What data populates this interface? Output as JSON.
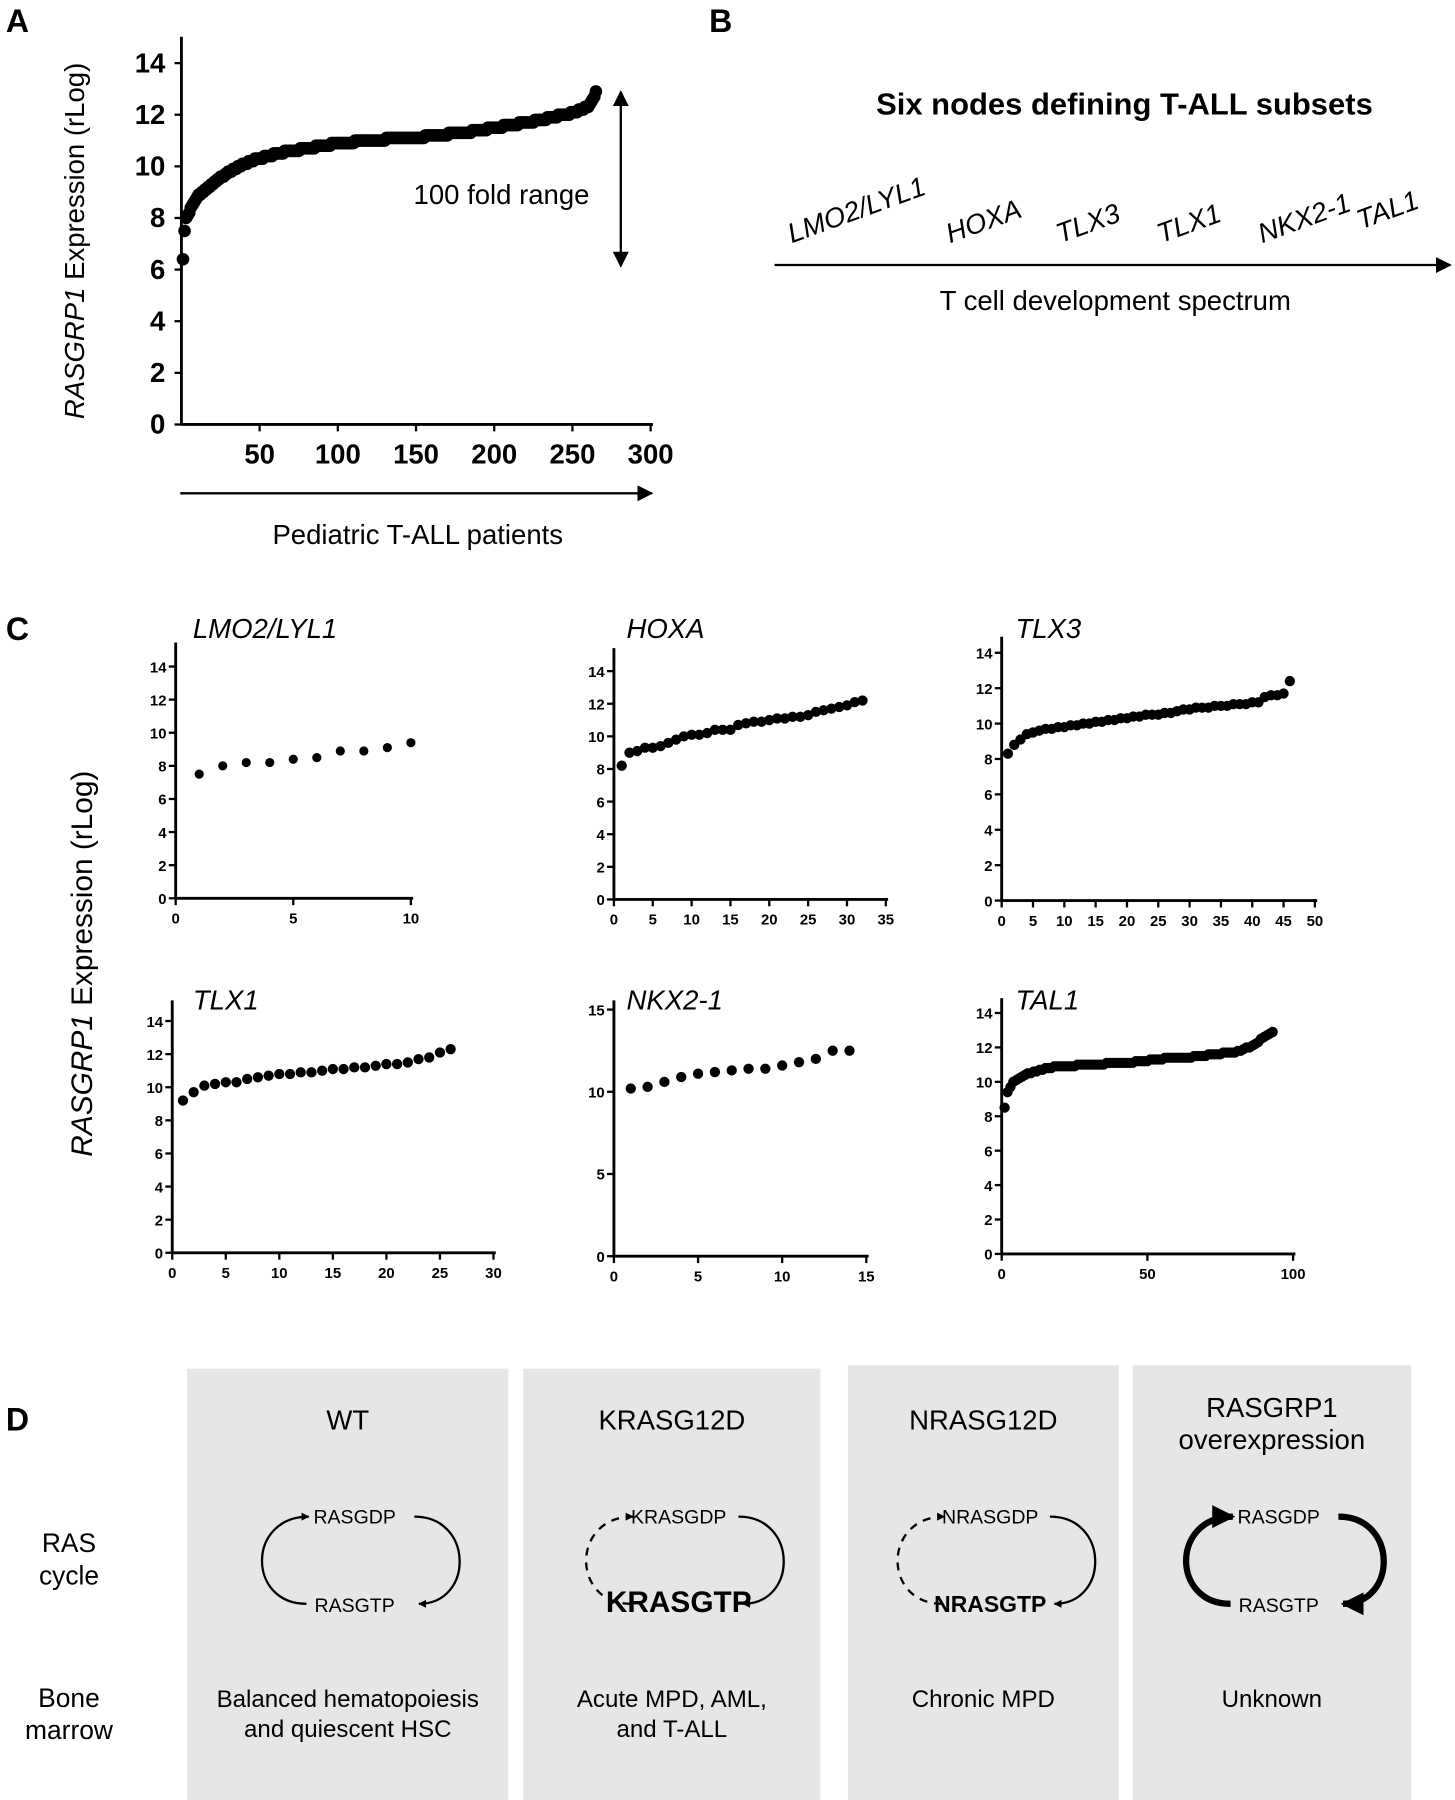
{
  "panel_labels": {
    "a": "A",
    "b": "B",
    "c": "C",
    "d": "D"
  },
  "chart_data": [
    {
      "type": "scatter",
      "panel": "A",
      "ylabel_italic": "RASGRP1",
      "ylabel_rest": " Expression (rLog)",
      "xlabel": "Pediatric T-ALL patients",
      "annotation": "100 fold range",
      "xlim": [
        0,
        300
      ],
      "ylim": [
        0,
        14
      ],
      "xticks": [
        50,
        100,
        150,
        200,
        250,
        300
      ],
      "yticks": [
        0,
        2,
        4,
        6,
        8,
        10,
        12,
        14
      ],
      "y": [
        6.4,
        7.5,
        8.0,
        8.1,
        8.2,
        8.4,
        8.5,
        8.6,
        8.7,
        8.8,
        8.9,
        8.9,
        9.0,
        9.0,
        9.1,
        9.1,
        9.2,
        9.2,
        9.3,
        9.3,
        9.4,
        9.4,
        9.5,
        9.5,
        9.6,
        9.6,
        9.6,
        9.7,
        9.7,
        9.8,
        9.8,
        9.8,
        9.9,
        9.9,
        9.9,
        10.0,
        10.0,
        10.0,
        10.1,
        10.1,
        10.1,
        10.1,
        10.2,
        10.2,
        10.2,
        10.2,
        10.3,
        10.3,
        10.3,
        10.3,
        10.3,
        10.3,
        10.4,
        10.4,
        10.4,
        10.4,
        10.4,
        10.4,
        10.5,
        10.5,
        10.5,
        10.5,
        10.5,
        10.5,
        10.5,
        10.6,
        10.6,
        10.6,
        10.6,
        10.6,
        10.6,
        10.6,
        10.6,
        10.6,
        10.6,
        10.7,
        10.7,
        10.7,
        10.7,
        10.7,
        10.7,
        10.7,
        10.7,
        10.7,
        10.7,
        10.8,
        10.8,
        10.8,
        10.8,
        10.8,
        10.8,
        10.8,
        10.8,
        10.8,
        10.8,
        10.9,
        10.9,
        10.9,
        10.9,
        10.9,
        10.9,
        10.9,
        10.9,
        10.9,
        10.9,
        10.9,
        10.9,
        10.9,
        10.9,
        10.9,
        11.0,
        11.0,
        11.0,
        11.0,
        11.0,
        11.0,
        11.0,
        11.0,
        11.0,
        11.0,
        11.0,
        11.0,
        11.0,
        11.0,
        11.0,
        11.0,
        11.0,
        11.0,
        11.0,
        11.0,
        11.1,
        11.1,
        11.1,
        11.1,
        11.1,
        11.1,
        11.1,
        11.1,
        11.1,
        11.1,
        11.1,
        11.1,
        11.1,
        11.1,
        11.1,
        11.1,
        11.1,
        11.1,
        11.1,
        11.1,
        11.1,
        11.1,
        11.1,
        11.1,
        11.1,
        11.2,
        11.2,
        11.2,
        11.2,
        11.2,
        11.2,
        11.2,
        11.2,
        11.2,
        11.2,
        11.2,
        11.2,
        11.2,
        11.2,
        11.2,
        11.3,
        11.3,
        11.3,
        11.3,
        11.3,
        11.3,
        11.3,
        11.3,
        11.3,
        11.3,
        11.3,
        11.3,
        11.3,
        11.3,
        11.3,
        11.4,
        11.4,
        11.4,
        11.4,
        11.4,
        11.4,
        11.4,
        11.4,
        11.4,
        11.4,
        11.5,
        11.5,
        11.5,
        11.5,
        11.5,
        11.5,
        11.5,
        11.5,
        11.5,
        11.5,
        11.6,
        11.6,
        11.6,
        11.6,
        11.6,
        11.6,
        11.6,
        11.6,
        11.6,
        11.6,
        11.7,
        11.7,
        11.7,
        11.7,
        11.7,
        11.7,
        11.7,
        11.7,
        11.7,
        11.7,
        11.8,
        11.8,
        11.8,
        11.8,
        11.8,
        11.8,
        11.8,
        11.8,
        11.9,
        11.9,
        11.9,
        11.9,
        11.9,
        11.9,
        11.9,
        12.0,
        12.0,
        12.0,
        12.0,
        12.0,
        12.0,
        12.0,
        12.0,
        12.1,
        12.1,
        12.1,
        12.1,
        12.1,
        12.2,
        12.2,
        12.2,
        12.2,
        12.3,
        12.3,
        12.3,
        12.4,
        12.5,
        12.6,
        12.7,
        12.9
      ]
    },
    {
      "type": "scatter",
      "panel": "C",
      "title": "LMO2/LYL1",
      "xlim": [
        0,
        10
      ],
      "ylim": [
        0,
        14
      ],
      "xticks": [
        0,
        5,
        10
      ],
      "yticks": [
        0,
        2,
        4,
        6,
        8,
        10,
        12,
        14
      ],
      "y": [
        7.5,
        8.0,
        8.2,
        8.2,
        8.4,
        8.5,
        8.9,
        8.9,
        9.1,
        9.4
      ]
    },
    {
      "type": "scatter",
      "panel": "C",
      "title": "HOXA",
      "xlim": [
        0,
        35
      ],
      "ylim": [
        0,
        14
      ],
      "xticks": [
        0,
        5,
        10,
        15,
        20,
        25,
        30,
        35
      ],
      "yticks": [
        0,
        2,
        4,
        6,
        8,
        10,
        12,
        14
      ],
      "y": [
        8.2,
        9.0,
        9.1,
        9.3,
        9.3,
        9.4,
        9.6,
        9.8,
        10.0,
        10.1,
        10.1,
        10.2,
        10.4,
        10.4,
        10.4,
        10.7,
        10.8,
        10.9,
        10.9,
        11.0,
        11.1,
        11.1,
        11.2,
        11.2,
        11.3,
        11.5,
        11.6,
        11.7,
        11.8,
        11.9,
        12.1,
        12.2
      ]
    },
    {
      "type": "scatter",
      "panel": "C",
      "title": "TLX3",
      "xlim": [
        0,
        50
      ],
      "ylim": [
        0,
        14
      ],
      "xticks": [
        0,
        5,
        10,
        15,
        20,
        25,
        30,
        35,
        40,
        45,
        50
      ],
      "yticks": [
        0,
        2,
        4,
        6,
        8,
        10,
        12,
        14
      ],
      "y": [
        8.3,
        8.8,
        9.1,
        9.4,
        9.5,
        9.6,
        9.7,
        9.7,
        9.8,
        9.8,
        9.9,
        9.9,
        10.0,
        10.0,
        10.1,
        10.1,
        10.2,
        10.2,
        10.3,
        10.3,
        10.4,
        10.4,
        10.5,
        10.5,
        10.5,
        10.6,
        10.6,
        10.7,
        10.8,
        10.8,
        10.9,
        10.9,
        10.9,
        11.0,
        11.0,
        11.0,
        11.1,
        11.1,
        11.1,
        11.2,
        11.2,
        11.5,
        11.6,
        11.6,
        11.7,
        12.4
      ]
    },
    {
      "type": "scatter",
      "panel": "C",
      "title": "TLX1",
      "xlim": [
        0,
        30
      ],
      "ylim": [
        0,
        14
      ],
      "xticks": [
        0,
        5,
        10,
        15,
        20,
        25,
        30
      ],
      "yticks": [
        0,
        2,
        4,
        6,
        8,
        10,
        12,
        14
      ],
      "y": [
        9.2,
        9.7,
        10.1,
        10.2,
        10.3,
        10.3,
        10.5,
        10.6,
        10.7,
        10.8,
        10.8,
        10.9,
        10.9,
        11.0,
        11.1,
        11.1,
        11.2,
        11.2,
        11.3,
        11.4,
        11.4,
        11.5,
        11.7,
        11.8,
        12.1,
        12.3
      ]
    },
    {
      "type": "scatter",
      "panel": "C",
      "title": "NKX2-1",
      "xlim": [
        0,
        15
      ],
      "ylim": [
        0,
        15
      ],
      "xticks": [
        0,
        5,
        10,
        15
      ],
      "yticks": [
        0,
        5,
        10,
        15
      ],
      "y": [
        10.2,
        10.3,
        10.6,
        10.9,
        11.1,
        11.2,
        11.3,
        11.4,
        11.4,
        11.6,
        11.8,
        12.0,
        12.5,
        12.5
      ]
    },
    {
      "type": "scatter",
      "panel": "C",
      "title": "TAL1",
      "xlim": [
        0,
        100
      ],
      "ylim": [
        0,
        14
      ],
      "xticks": [
        0,
        50,
        100
      ],
      "yticks": [
        0,
        2,
        4,
        6,
        8,
        10,
        12,
        14
      ],
      "y": [
        8.5,
        9.4,
        9.7,
        10.0,
        10.1,
        10.2,
        10.3,
        10.4,
        10.5,
        10.5,
        10.6,
        10.6,
        10.7,
        10.7,
        10.8,
        10.8,
        10.8,
        10.9,
        10.9,
        10.9,
        10.9,
        10.9,
        10.9,
        10.9,
        10.9,
        11.0,
        11.0,
        11.0,
        11.0,
        11.0,
        11.0,
        11.0,
        11.0,
        11.0,
        11.0,
        11.1,
        11.1,
        11.1,
        11.1,
        11.1,
        11.1,
        11.1,
        11.1,
        11.1,
        11.1,
        11.2,
        11.2,
        11.2,
        11.2,
        11.2,
        11.3,
        11.3,
        11.3,
        11.3,
        11.3,
        11.4,
        11.4,
        11.4,
        11.4,
        11.4,
        11.4,
        11.4,
        11.4,
        11.4,
        11.4,
        11.5,
        11.5,
        11.5,
        11.5,
        11.5,
        11.6,
        11.6,
        11.6,
        11.6,
        11.6,
        11.7,
        11.7,
        11.7,
        11.7,
        11.7,
        11.8,
        11.8,
        11.9,
        12.0,
        12.0,
        12.1,
        12.2,
        12.3,
        12.5,
        12.6,
        12.7,
        12.8,
        12.9
      ]
    }
  ],
  "panel_c": {
    "ylabel_italic": "RASGRP1",
    "ylabel_rest": " Expression (rLog)"
  },
  "panel_b": {
    "title": "Six nodes defining T-ALL subsets",
    "nodes": [
      "LMO2/LYL1",
      "HOXA",
      "TLX3",
      "TLX1",
      "NKX2-1",
      "TAL1"
    ],
    "axis_label": "T cell development spectrum"
  },
  "panel_d": {
    "row_labels": [
      [
        "RAS",
        "cycle"
      ],
      [
        "Bone",
        "marrow"
      ]
    ],
    "columns": [
      {
        "title": [
          "WT"
        ],
        "gdp": "RASGDP",
        "gtp": "RASGTP",
        "outcome": [
          "Balanced hematopoiesis",
          "and quiescent HSC"
        ]
      },
      {
        "title": [
          "KRASG12D"
        ],
        "gdp": "KRASGDP",
        "gtp": "KRASGTP",
        "outcome": [
          "Acute MPD, AML,",
          "and T-ALL"
        ]
      },
      {
        "title": [
          "NRASG12D"
        ],
        "gdp": "NRASGDP",
        "gtp": "NRASGTP",
        "outcome": [
          "Chronic MPD"
        ]
      },
      {
        "title": [
          "RASGRP1",
          "overexpression"
        ],
        "gdp": "RASGDP",
        "gtp": "RASGTP",
        "outcome": [
          "Unknown"
        ]
      }
    ]
  }
}
